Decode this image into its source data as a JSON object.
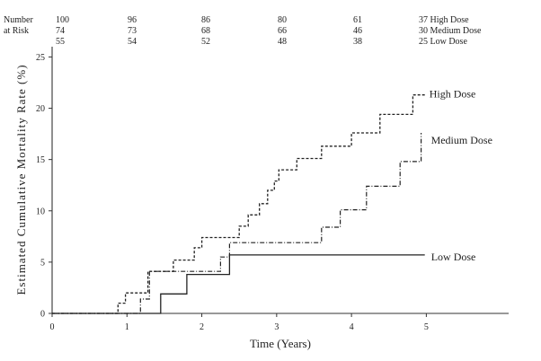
{
  "chart_data": {
    "type": "line",
    "xlabel": "Time (Years)",
    "ylabel": "Estimated Cumulative Mortality Rate (%)",
    "xlim": [
      0,
      6.1
    ],
    "ylim": [
      0,
      26
    ],
    "x_ticks": [
      "0",
      "1",
      "2",
      "3",
      "4",
      "5"
    ],
    "y_ticks": [
      "0",
      "5",
      "10",
      "15",
      "20",
      "25"
    ],
    "grid": false,
    "series": [
      {
        "name": "High Dose",
        "style": "dashed",
        "x": [
          0,
          0.88,
          0.88,
          0.98,
          0.98,
          1.28,
          1.28,
          1.62,
          1.62,
          1.9,
          1.9,
          2.0,
          2.0,
          2.5,
          2.5,
          2.62,
          2.62,
          2.77,
          2.77,
          2.88,
          2.88,
          2.97,
          2.97,
          3.03,
          3.03,
          3.27,
          3.27,
          3.6,
          3.6,
          4.0,
          4.0,
          4.38,
          4.38,
          4.82,
          4.82,
          4.98
        ],
        "y": [
          0,
          0,
          1,
          1,
          2,
          2,
          4.1,
          4.1,
          5.2,
          5.2,
          6.4,
          6.4,
          7.4,
          7.4,
          8.5,
          8.5,
          9.6,
          9.6,
          10.7,
          10.7,
          12,
          12,
          12.9,
          12.9,
          14,
          14,
          15.1,
          15.1,
          16.3,
          16.3,
          17.6,
          17.6,
          19.4,
          19.4,
          21.3,
          21.3
        ]
      },
      {
        "name": "Medium Dose",
        "style": "dash-dot",
        "x": [
          0,
          1.18,
          1.18,
          1.3,
          1.3,
          2.25,
          2.25,
          2.37,
          2.37,
          3.6,
          3.6,
          3.85,
          3.85,
          4.2,
          4.2,
          4.65,
          4.65,
          4.93,
          4.93
        ],
        "y": [
          0,
          0,
          1.4,
          1.4,
          4.1,
          4.1,
          5.5,
          5.5,
          6.9,
          6.9,
          8.4,
          8.4,
          10.1,
          10.1,
          12.4,
          12.4,
          14.8,
          14.8,
          17.6
        ]
      },
      {
        "name": "Low Dose",
        "style": "solid",
        "x": [
          0,
          1.45,
          1.45,
          1.8,
          1.8,
          2.37,
          2.37,
          4.98
        ],
        "y": [
          0,
          0,
          1.9,
          1.9,
          3.8,
          3.8,
          5.7,
          5.7
        ]
      }
    ]
  },
  "risk_table": {
    "header_line1": "Number",
    "header_line2": "at Risk",
    "rows": [
      {
        "values": [
          "100",
          "96",
          "86",
          "80",
          "61"
        ],
        "last": "37 High Dose"
      },
      {
        "values": [
          "74",
          "73",
          "68",
          "66",
          "46"
        ],
        "last": "30 Medium Dose"
      },
      {
        "values": [
          "55",
          "54",
          "52",
          "48",
          "38"
        ],
        "last": "25 Low Dose"
      }
    ]
  }
}
